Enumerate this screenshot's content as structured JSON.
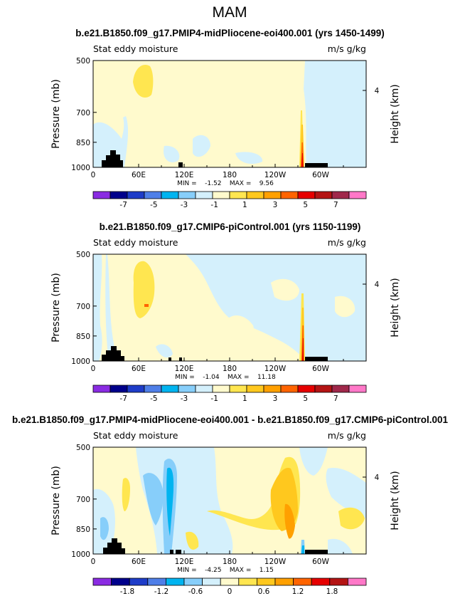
{
  "figure_title": "MAM",
  "chart_data": [
    {
      "type": "heatmap",
      "title": "b.e21.B1850.f09_g17.PMIP4-midPliocene-eoi400.001 (yrs 1450-1499)",
      "left_subtitle": "Stat eddy moisture",
      "right_subtitle": "m/s g/kg",
      "ylabel": "Pressure (mb)",
      "y2label": "Height (km)",
      "xticks": [
        "0",
        "60E",
        "120E",
        "180",
        "120W",
        "60W"
      ],
      "yticks": [
        "500",
        "700",
        "850",
        "1000"
      ],
      "y2ticks": [
        "4"
      ],
      "xlim": [
        0,
        360
      ],
      "ylim": [
        1000,
        500
      ],
      "stats": "MIN =    -1.52    MAX =    9.56",
      "colorbar_labels": [
        "-7",
        "-5",
        "-3",
        "-1",
        "1",
        "3",
        "5",
        "7"
      ],
      "colorbar_colors": [
        "#8a2be2",
        "#00008b",
        "#1e3cc8",
        "#4f7fe8",
        "#00b4f0",
        "#87cefa",
        "#d4f0fc",
        "#fffacd",
        "#ffe650",
        "#ffc81e",
        "#ffa000",
        "#ff6400",
        "#e60000",
        "#b41414",
        "#a0284b",
        "#ff78c8"
      ],
      "features": [
        {
          "level": "+1",
          "lon_range": [
            55,
            80
          ],
          "p_range": [
            575,
            800
          ]
        },
        {
          "level": "+3..+9.56",
          "lon_range": [
            283,
            285
          ],
          "p_range": [
            690,
            1000
          ]
        },
        {
          "level": "-1",
          "lon_range": [
            270,
            360
          ],
          "p_range": [
            500,
            1000
          ]
        }
      ]
    },
    {
      "type": "heatmap",
      "title": "b.e21.B1850.f09_g17.CMIP6-piControl.001 (yrs 1150-1199)",
      "left_subtitle": "Stat eddy moisture",
      "right_subtitle": "m/s g/kg",
      "ylabel": "Pressure (mb)",
      "y2label": "Height (km)",
      "xticks": [
        "0",
        "60E",
        "120E",
        "180",
        "120W",
        "60W"
      ],
      "yticks": [
        "500",
        "700",
        "850",
        "1000"
      ],
      "y2ticks": [
        "4"
      ],
      "xlim": [
        0,
        360
      ],
      "ylim": [
        1000,
        500
      ],
      "stats": "MIN =    -1.04    MAX =    11.18",
      "colorbar_labels": [
        "-7",
        "-5",
        "-3",
        "-1",
        "1",
        "3",
        "5",
        "7"
      ],
      "colorbar_colors": [
        "#8a2be2",
        "#00008b",
        "#1e3cc8",
        "#4f7fe8",
        "#00b4f0",
        "#87cefa",
        "#d4f0fc",
        "#fffacd",
        "#ffe650",
        "#ffc81e",
        "#ffa000",
        "#ff6400",
        "#e60000",
        "#b41414",
        "#a0284b",
        "#ff78c8"
      ],
      "features": [
        {
          "level": "+1",
          "lon_range": [
            55,
            85
          ],
          "p_range": [
            560,
            820
          ]
        },
        {
          "level": "+3..+11.18",
          "lon_range": [
            282,
            285
          ],
          "p_range": [
            680,
            1000
          ]
        },
        {
          "level": "-1",
          "lon_range": [
            180,
            360
          ],
          "p_range": [
            500,
            1000
          ]
        }
      ]
    },
    {
      "type": "heatmap",
      "title": "b.e21.B1850.f09_g17.PMIP4-midPliocene-eoi400.001 - b.e21.B1850.f09_g17.CMIP6-piControl.001",
      "left_subtitle": "Stat eddy moisture",
      "right_subtitle": "m/s g/kg",
      "ylabel": "Pressure (mb)",
      "y2label": "Height (km)",
      "xticks": [
        "0",
        "60E",
        "120E",
        "180",
        "120W",
        "60W"
      ],
      "yticks": [
        "500",
        "700",
        "850",
        "1000"
      ],
      "y2ticks": [
        "4"
      ],
      "xlim": [
        0,
        360
      ],
      "ylim": [
        1000,
        500
      ],
      "stats": "MIN =    -4.25    MAX =    1.15",
      "colorbar_labels": [
        "-1.8",
        "-1.2",
        "-0.6",
        "0",
        "0.6",
        "1.2",
        "1.8"
      ],
      "colorbar_colors": [
        "#8a2be2",
        "#00008b",
        "#1e3cc8",
        "#4f7fe8",
        "#00b4f0",
        "#87cefa",
        "#d4f0fc",
        "#fffacd",
        "#ffe650",
        "#ffc81e",
        "#ffa000",
        "#ff6400",
        "#e60000",
        "#b41414",
        "#ff78c8"
      ],
      "features": [
        {
          "level": "-0.6..-1.2",
          "lon_range": [
            95,
            115
          ],
          "p_range": [
            520,
            1000
          ]
        },
        {
          "level": "+0.6",
          "lon_range": [
            240,
            285
          ],
          "p_range": [
            560,
            1000
          ]
        },
        {
          "level": "-1.8",
          "lon_range": [
            282,
            285
          ],
          "p_range": [
            800,
            1000
          ]
        }
      ]
    }
  ],
  "icons": {
    "topography": "black terrain mask",
    "contour_fill": "filled contours"
  }
}
